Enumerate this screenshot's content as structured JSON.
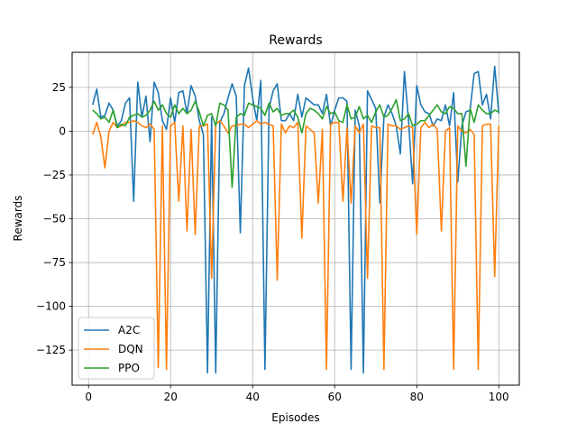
{
  "chart_data": {
    "type": "line",
    "title": "Rewards",
    "xlabel": "Episodes",
    "ylabel": "Rewards",
    "xlim": [
      -4,
      105
    ],
    "ylim": [
      -145,
      45
    ],
    "xticks": [
      0,
      20,
      40,
      60,
      80,
      100
    ],
    "yticks": [
      -125,
      -100,
      -75,
      -50,
      -25,
      0,
      25
    ],
    "grid": true,
    "legend_position": "lower-left",
    "x": [
      1,
      2,
      3,
      4,
      5,
      6,
      7,
      8,
      9,
      10,
      11,
      12,
      13,
      14,
      15,
      16,
      17,
      18,
      19,
      20,
      21,
      22,
      23,
      24,
      25,
      26,
      27,
      28,
      29,
      30,
      31,
      32,
      33,
      34,
      35,
      36,
      37,
      38,
      39,
      40,
      41,
      42,
      43,
      44,
      45,
      46,
      47,
      48,
      49,
      50,
      51,
      52,
      53,
      54,
      55,
      56,
      57,
      58,
      59,
      60,
      61,
      62,
      63,
      64,
      65,
      66,
      67,
      68,
      69,
      70,
      71,
      72,
      73,
      74,
      75,
      76,
      77,
      78,
      79,
      80,
      81,
      82,
      83,
      84,
      85,
      86,
      87,
      88,
      89,
      90,
      91,
      92,
      93,
      94,
      95,
      96,
      97,
      98,
      99,
      100
    ],
    "series": [
      {
        "name": "A2C",
        "color": "#1f77b4",
        "values": [
          15,
          24,
          8,
          9,
          16,
          12,
          3,
          6,
          16,
          19,
          -40,
          28,
          8,
          20,
          -6,
          28,
          22,
          6,
          1,
          19,
          5,
          22,
          23,
          10,
          26,
          20,
          6,
          -2,
          -138,
          8,
          -138,
          5,
          10,
          19,
          27,
          20,
          -58,
          26,
          36,
          19,
          6,
          29,
          -136,
          13,
          23,
          27,
          6,
          6,
          10,
          6,
          21,
          8,
          19,
          17,
          15,
          15,
          10,
          21,
          3,
          12,
          19,
          19,
          17,
          -136,
          12,
          3,
          -138,
          23,
          18,
          13,
          -41,
          8,
          15,
          10,
          3,
          -13,
          34,
          6,
          -30,
          26,
          15,
          11,
          10,
          3,
          7,
          6,
          15,
          3,
          22,
          -29,
          3,
          11,
          12,
          33,
          34,
          15,
          21,
          7,
          37,
          10
        ]
      },
      {
        "name": "DQN",
        "color": "#ff7f0e",
        "values": [
          -2,
          5,
          -3,
          -21,
          0,
          5,
          2,
          3,
          5,
          5,
          6,
          5,
          3,
          2,
          4,
          1,
          -135,
          3,
          -136,
          3,
          5,
          -40,
          3,
          -57,
          1,
          -59,
          3,
          3,
          4,
          -84,
          4,
          6,
          3,
          -1,
          3,
          3,
          4,
          4,
          2,
          4,
          6,
          4,
          5,
          4,
          3,
          -85,
          4,
          -1,
          3,
          2,
          5,
          -61,
          3,
          1,
          -1,
          -41,
          1,
          -136,
          4,
          5,
          5,
          -40,
          2,
          -41,
          3,
          -1,
          4,
          -84,
          3,
          2,
          2,
          -136,
          4,
          3,
          3,
          1,
          2,
          3,
          2,
          -59,
          2,
          5,
          2,
          4,
          1,
          -57,
          0,
          2,
          -136,
          3,
          0,
          -1,
          1,
          -2,
          -136,
          3,
          4,
          4,
          -83,
          3
        ]
      },
      {
        "name": "PPO",
        "color": "#2ca02c",
        "values": [
          12,
          10,
          7,
          8,
          5,
          12,
          2,
          4,
          3,
          8,
          9,
          10,
          8,
          9,
          12,
          17,
          12,
          15,
          10,
          8,
          15,
          10,
          13,
          10,
          12,
          17,
          11,
          3,
          9,
          10,
          3,
          16,
          15,
          12,
          -32,
          8,
          10,
          9,
          16,
          15,
          14,
          13,
          9,
          16,
          11,
          13,
          9,
          10,
          10,
          12,
          8,
          -1,
          10,
          13,
          12,
          10,
          7,
          14,
          10,
          11,
          6,
          5,
          15,
          7,
          8,
          14,
          7,
          9,
          5,
          11,
          15,
          8,
          9,
          13,
          18,
          6,
          7,
          10,
          3,
          4,
          6,
          6,
          9,
          12,
          15,
          11,
          10,
          14,
          13,
          10,
          10,
          -20,
          13,
          5,
          15,
          12,
          10,
          10,
          12,
          11
        ]
      }
    ]
  }
}
